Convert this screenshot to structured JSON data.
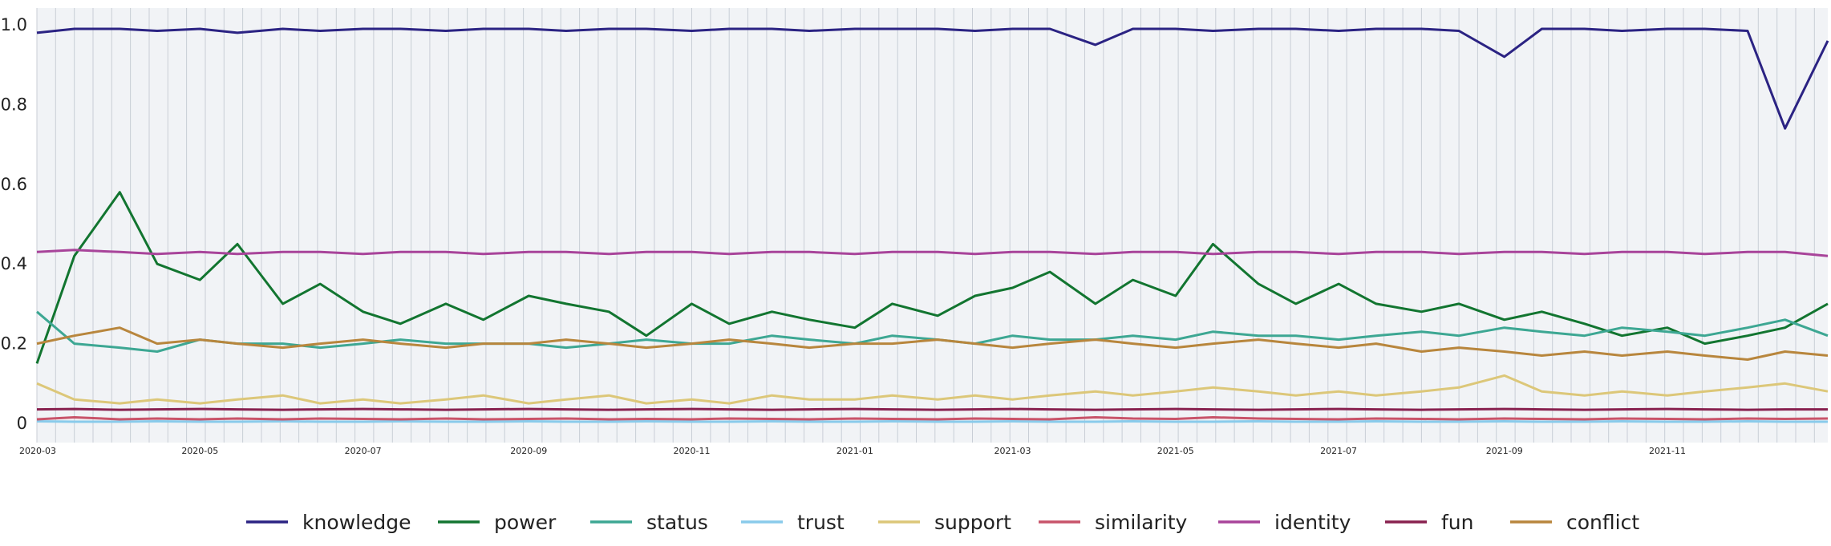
{
  "chart_data": {
    "type": "line",
    "title": "",
    "xlabel": "",
    "ylabel": "",
    "x_range": [
      "2020-03-01",
      "2021-12-31"
    ],
    "ylim": [
      0,
      1.03
    ],
    "grid": true,
    "legend_position": "bottom-center",
    "x_ticks": [
      "2020-03",
      "2020-05",
      "2020-07",
      "2020-09",
      "2020-11",
      "2021-01",
      "2021-03",
      "2021-05",
      "2021-07",
      "2021-09",
      "2021-11"
    ],
    "y_ticks": [
      {
        "value": 0,
        "label": "0"
      },
      {
        "value": 0.2,
        "label": "0.2"
      },
      {
        "value": 0.4,
        "label": "0.4"
      },
      {
        "value": 0.6,
        "label": "0.6"
      },
      {
        "value": 0.8,
        "label": "0.8"
      },
      {
        "value": 1.0,
        "label": "1.0"
      }
    ],
    "x_dates": [
      "2020-03-01",
      "2020-03-15",
      "2020-04-01",
      "2020-04-15",
      "2020-05-01",
      "2020-05-15",
      "2020-06-01",
      "2020-06-15",
      "2020-07-01",
      "2020-07-15",
      "2020-08-01",
      "2020-08-15",
      "2020-09-01",
      "2020-09-15",
      "2020-10-01",
      "2020-10-15",
      "2020-11-01",
      "2020-11-15",
      "2020-12-01",
      "2020-12-15",
      "2021-01-01",
      "2021-01-15",
      "2021-02-01",
      "2021-02-15",
      "2021-03-01",
      "2021-03-15",
      "2021-04-01",
      "2021-04-15",
      "2021-05-01",
      "2021-05-15",
      "2021-06-01",
      "2021-06-15",
      "2021-07-01",
      "2021-07-15",
      "2021-08-01",
      "2021-08-15",
      "2021-09-01",
      "2021-09-15",
      "2021-10-01",
      "2021-10-15",
      "2021-11-01",
      "2021-11-15",
      "2021-12-01",
      "2021-12-15",
      "2021-12-31"
    ],
    "series": [
      {
        "name": "knowledge",
        "color": "#2b2383",
        "values": [
          0.98,
          0.99,
          0.99,
          0.985,
          0.99,
          0.98,
          0.99,
          0.985,
          0.99,
          0.99,
          0.985,
          0.99,
          0.99,
          0.985,
          0.99,
          0.99,
          0.985,
          0.99,
          0.99,
          0.985,
          0.99,
          0.99,
          0.99,
          0.985,
          0.99,
          0.99,
          0.95,
          0.99,
          0.99,
          0.985,
          0.99,
          0.99,
          0.985,
          0.99,
          0.99,
          0.985,
          0.92,
          0.99,
          0.99,
          0.985,
          0.99,
          0.99,
          0.985,
          0.74,
          0.96
        ]
      },
      {
        "name": "power",
        "color": "#127530",
        "values": [
          0.15,
          0.42,
          0.58,
          0.4,
          0.36,
          0.45,
          0.3,
          0.35,
          0.28,
          0.25,
          0.3,
          0.26,
          0.32,
          0.3,
          0.28,
          0.22,
          0.3,
          0.25,
          0.28,
          0.26,
          0.24,
          0.3,
          0.27,
          0.32,
          0.34,
          0.38,
          0.3,
          0.36,
          0.32,
          0.45,
          0.35,
          0.3,
          0.35,
          0.3,
          0.28,
          0.3,
          0.26,
          0.28,
          0.25,
          0.22,
          0.24,
          0.2,
          0.22,
          0.24,
          0.3
        ]
      },
      {
        "name": "status",
        "color": "#3da793",
        "values": [
          0.28,
          0.2,
          0.19,
          0.18,
          0.21,
          0.2,
          0.2,
          0.19,
          0.2,
          0.21,
          0.2,
          0.2,
          0.2,
          0.19,
          0.2,
          0.21,
          0.2,
          0.2,
          0.22,
          0.21,
          0.2,
          0.22,
          0.21,
          0.2,
          0.22,
          0.21,
          0.21,
          0.22,
          0.21,
          0.23,
          0.22,
          0.22,
          0.21,
          0.22,
          0.23,
          0.22,
          0.24,
          0.23,
          0.22,
          0.24,
          0.23,
          0.22,
          0.24,
          0.26,
          0.22
        ]
      },
      {
        "name": "trust",
        "color": "#89cbeb",
        "values": [
          0.005,
          0.004,
          0.004,
          0.005,
          0.004,
          0.004,
          0.005,
          0.004,
          0.004,
          0.005,
          0.004,
          0.004,
          0.005,
          0.004,
          0.004,
          0.005,
          0.004,
          0.004,
          0.005,
          0.004,
          0.004,
          0.005,
          0.004,
          0.004,
          0.005,
          0.004,
          0.004,
          0.005,
          0.004,
          0.004,
          0.005,
          0.004,
          0.004,
          0.005,
          0.004,
          0.004,
          0.005,
          0.004,
          0.004,
          0.005,
          0.004,
          0.004,
          0.005,
          0.004,
          0.004
        ]
      },
      {
        "name": "support",
        "color": "#dcc779",
        "values": [
          0.1,
          0.06,
          0.05,
          0.06,
          0.05,
          0.06,
          0.07,
          0.05,
          0.06,
          0.05,
          0.06,
          0.07,
          0.05,
          0.06,
          0.07,
          0.05,
          0.06,
          0.05,
          0.07,
          0.06,
          0.06,
          0.07,
          0.06,
          0.07,
          0.06,
          0.07,
          0.08,
          0.07,
          0.08,
          0.09,
          0.08,
          0.07,
          0.08,
          0.07,
          0.08,
          0.09,
          0.12,
          0.08,
          0.07,
          0.08,
          0.07,
          0.08,
          0.09,
          0.1,
          0.08
        ]
      },
      {
        "name": "similarity",
        "color": "#c8546a",
        "values": [
          0.01,
          0.015,
          0.01,
          0.012,
          0.01,
          0.012,
          0.01,
          0.012,
          0.011,
          0.01,
          0.012,
          0.01,
          0.011,
          0.012,
          0.01,
          0.011,
          0.01,
          0.012,
          0.011,
          0.01,
          0.012,
          0.011,
          0.01,
          0.012,
          0.011,
          0.01,
          0.015,
          0.012,
          0.011,
          0.015,
          0.012,
          0.011,
          0.01,
          0.012,
          0.011,
          0.01,
          0.012,
          0.011,
          0.01,
          0.012,
          0.011,
          0.01,
          0.012,
          0.011,
          0.012
        ]
      },
      {
        "name": "identity",
        "color": "#a8449a",
        "values": [
          0.43,
          0.435,
          0.43,
          0.425,
          0.43,
          0.425,
          0.43,
          0.43,
          0.425,
          0.43,
          0.43,
          0.425,
          0.43,
          0.43,
          0.425,
          0.43,
          0.43,
          0.425,
          0.43,
          0.43,
          0.425,
          0.43,
          0.43,
          0.425,
          0.43,
          0.43,
          0.425,
          0.43,
          0.43,
          0.425,
          0.43,
          0.43,
          0.425,
          0.43,
          0.43,
          0.425,
          0.43,
          0.43,
          0.425,
          0.43,
          0.43,
          0.425,
          0.43,
          0.43,
          0.42
        ]
      },
      {
        "name": "fun",
        "color": "#88214f",
        "values": [
          0.035,
          0.036,
          0.034,
          0.035,
          0.036,
          0.035,
          0.034,
          0.035,
          0.036,
          0.035,
          0.034,
          0.035,
          0.036,
          0.035,
          0.034,
          0.035,
          0.036,
          0.035,
          0.034,
          0.035,
          0.036,
          0.035,
          0.034,
          0.035,
          0.036,
          0.035,
          0.034,
          0.035,
          0.036,
          0.035,
          0.034,
          0.035,
          0.036,
          0.035,
          0.034,
          0.035,
          0.036,
          0.035,
          0.034,
          0.035,
          0.036,
          0.035,
          0.034,
          0.035,
          0.035
        ]
      },
      {
        "name": "conflict",
        "color": "#b8863d",
        "values": [
          0.2,
          0.22,
          0.24,
          0.2,
          0.21,
          0.2,
          0.19,
          0.2,
          0.21,
          0.2,
          0.19,
          0.2,
          0.2,
          0.21,
          0.2,
          0.19,
          0.2,
          0.21,
          0.2,
          0.19,
          0.2,
          0.2,
          0.21,
          0.2,
          0.19,
          0.2,
          0.21,
          0.2,
          0.19,
          0.2,
          0.21,
          0.2,
          0.19,
          0.2,
          0.18,
          0.19,
          0.18,
          0.17,
          0.18,
          0.17,
          0.18,
          0.17,
          0.16,
          0.18,
          0.17
        ]
      }
    ]
  }
}
